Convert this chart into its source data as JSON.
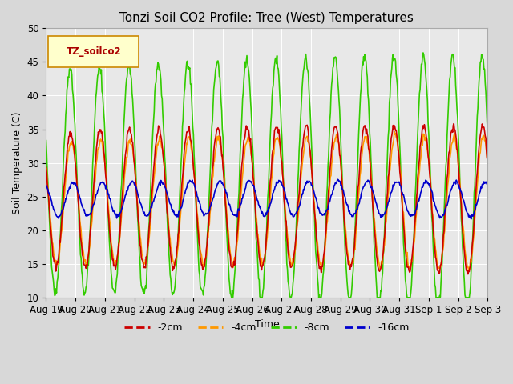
{
  "title": "Tonzi Soil CO2 Profile: Tree (West) Temperatures",
  "xlabel": "Time",
  "ylabel": "Soil Temperature (C)",
  "ylim": [
    10,
    50
  ],
  "series": {
    "-2cm": {
      "color": "#cc0000",
      "linewidth": 1.2
    },
    "-4cm": {
      "color": "#ff9900",
      "linewidth": 1.2
    },
    "-8cm": {
      "color": "#33cc00",
      "linewidth": 1.2
    },
    "-16cm": {
      "color": "#0000cc",
      "linewidth": 1.2
    }
  },
  "tick_labels": [
    "Aug 19",
    "Aug 20",
    "Aug 21",
    "Aug 22",
    "Aug 23",
    "Aug 24",
    "Aug 25",
    "Aug 26",
    "Aug 27",
    "Aug 28",
    "Aug 29",
    "Aug 30",
    "Aug 31",
    "Sep 1",
    "Sep 2",
    "Sep 3"
  ],
  "legend_label": "TZ_soilco2",
  "legend_box_color": "#ffffcc",
  "legend_box_edge": "#cc8800",
  "fig_facecolor": "#d8d8d8",
  "ax_facecolor": "#e8e8e8"
}
